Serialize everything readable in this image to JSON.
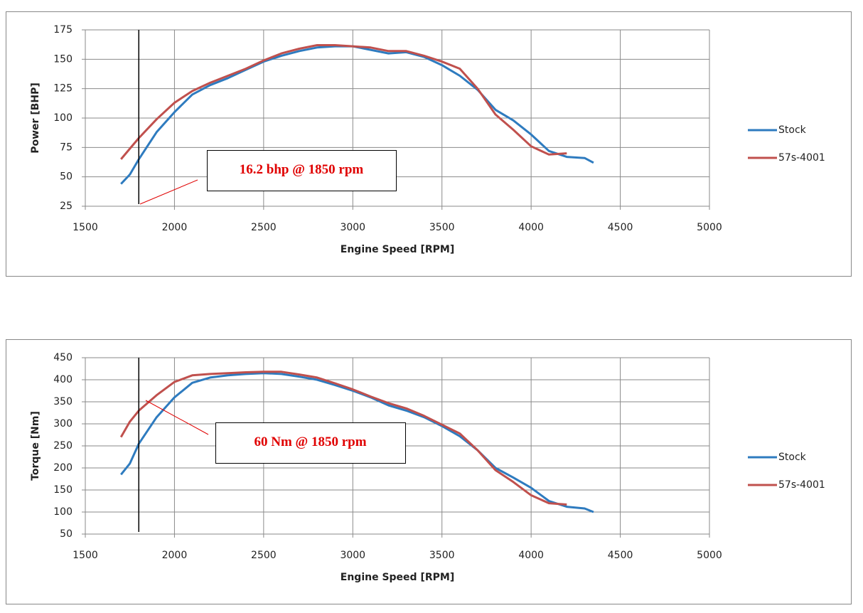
{
  "chart_data": [
    {
      "type": "line",
      "ylabel": "Power [BHP]",
      "xlabel": "Engine Speed [RPM]",
      "x": [
        1700,
        1750,
        1800,
        1900,
        2000,
        2100,
        2200,
        2300,
        2400,
        2500,
        2600,
        2700,
        2800,
        2900,
        3000,
        3100,
        3200,
        3300,
        3400,
        3500,
        3600,
        3700,
        3800,
        3900,
        4000,
        4100,
        4200,
        4300,
        4350
      ],
      "series": [
        {
          "name": "Stock",
          "color": "#2e7bbf",
          "values": [
            44,
            52,
            65,
            88,
            105,
            120,
            128,
            134,
            141,
            148,
            153,
            157,
            160,
            161,
            161,
            158,
            155,
            156,
            152,
            145,
            136,
            124,
            107,
            98,
            86,
            72,
            67,
            66,
            62
          ]
        },
        {
          "name": "57s-4001",
          "color": "#c0504d",
          "values": [
            65,
            74,
            83,
            99,
            113,
            123,
            130,
            136,
            142,
            149,
            155,
            159,
            162,
            162,
            161,
            160,
            157,
            157,
            153,
            148,
            142,
            125,
            103,
            90,
            76,
            69,
            70,
            null,
            null
          ]
        }
      ],
      "xlim": [
        1500,
        5000
      ],
      "xticks": [
        1500,
        2000,
        2500,
        3000,
        3500,
        4000,
        4500,
        5000
      ],
      "ylim": [
        25,
        175
      ],
      "yticks": [
        25,
        50,
        75,
        100,
        125,
        150,
        175
      ],
      "grid": true,
      "reference_line_x": 1800,
      "annotation": "16.2 bhp @ 1850 rpm",
      "legend": "right"
    },
    {
      "type": "line",
      "ylabel": "Torque [Nm]",
      "xlabel": "Engine Speed [RPM]",
      "x": [
        1700,
        1750,
        1800,
        1900,
        2000,
        2100,
        2200,
        2300,
        2400,
        2500,
        2600,
        2700,
        2800,
        2900,
        3000,
        3100,
        3200,
        3300,
        3400,
        3500,
        3600,
        3700,
        3800,
        3900,
        4000,
        4100,
        4200,
        4300,
        4350
      ],
      "series": [
        {
          "name": "Stock",
          "color": "#2e7bbf",
          "values": [
            185,
            210,
            255,
            315,
            360,
            393,
            405,
            410,
            413,
            415,
            413,
            407,
            400,
            388,
            375,
            360,
            342,
            330,
            315,
            295,
            272,
            240,
            200,
            178,
            155,
            125,
            112,
            108,
            100
          ]
        },
        {
          "name": "57s-4001",
          "color": "#c0504d",
          "values": [
            270,
            305,
            330,
            365,
            395,
            410,
            413,
            415,
            417,
            418,
            418,
            412,
            405,
            392,
            378,
            362,
            347,
            335,
            318,
            298,
            278,
            240,
            195,
            168,
            138,
            120,
            117,
            null,
            null
          ]
        }
      ],
      "xlim": [
        1500,
        5000
      ],
      "xticks": [
        1500,
        2000,
        2500,
        3000,
        3500,
        4000,
        4500,
        5000
      ],
      "ylim": [
        50,
        450
      ],
      "yticks": [
        50,
        100,
        150,
        200,
        250,
        300,
        350,
        400,
        450
      ],
      "grid": true,
      "reference_line_x": 1800,
      "annotation": "60 Nm @ 1850 rpm",
      "legend": "right"
    }
  ]
}
